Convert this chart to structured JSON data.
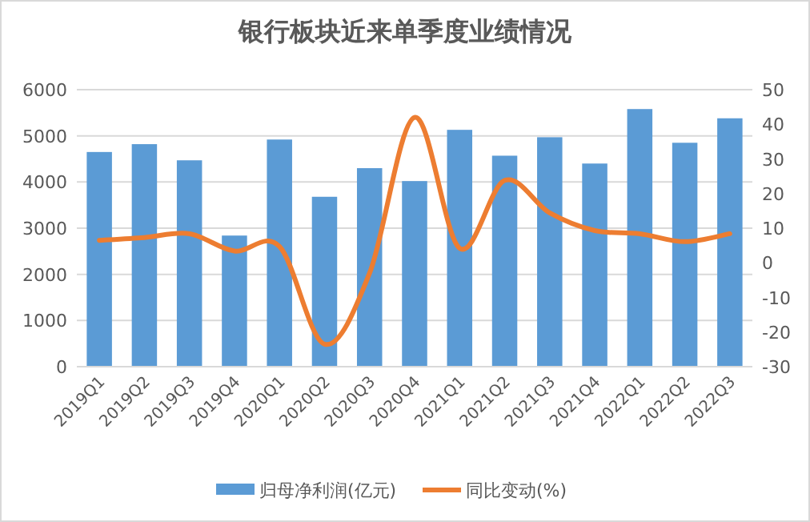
{
  "chart_data": {
    "type": "bar",
    "title": "银行板块近来单季度业绩情况",
    "categories": [
      "2019Q1",
      "2019Q2",
      "2019Q3",
      "2019Q4",
      "2020Q1",
      "2020Q2",
      "2020Q3",
      "2020Q4",
      "2021Q1",
      "2021Q2",
      "2021Q3",
      "2021Q4",
      "2022Q1",
      "2022Q2",
      "2022Q3"
    ],
    "series": [
      {
        "name": "归母净利润(亿元)",
        "color": "#5b9bd5",
        "values": [
          4650,
          4820,
          4470,
          2840,
          4920,
          3680,
          4300,
          4020,
          5130,
          4570,
          4970,
          4400,
          5580,
          4850,
          5380
        ]
      },
      {
        "name": "同比变动(%)",
        "type": "line",
        "axis": "y2",
        "color": "#ed7d31",
        "values": [
          6.5,
          7.3,
          8.4,
          3.4,
          4.7,
          -23.5,
          -3,
          42,
          4.2,
          23.8,
          14.4,
          9.3,
          8.4,
          6.1,
          8.4
        ]
      }
    ],
    "ylim": [
      0,
      6000
    ],
    "yticks": [
      0,
      1000,
      2000,
      3000,
      4000,
      5000,
      6000
    ],
    "y2lim": [
      -30,
      50
    ],
    "y2ticks": [
      -30,
      -20,
      -10,
      0,
      10,
      20,
      30,
      40,
      50
    ],
    "grid": "y",
    "legend": "bottom",
    "marker": "none"
  }
}
